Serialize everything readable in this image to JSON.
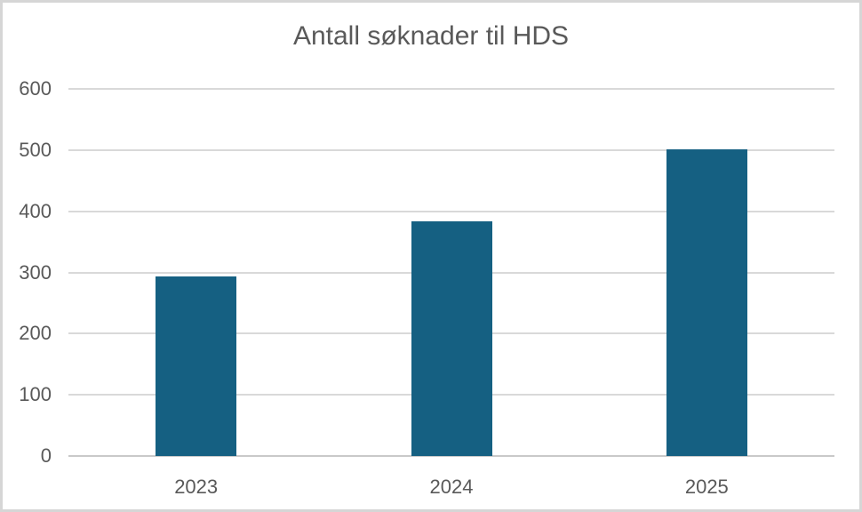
{
  "chart_data": {
    "type": "bar",
    "title": "Antall søknader til HDS",
    "categories": [
      "2023",
      "2024",
      "2025"
    ],
    "values": [
      293,
      383,
      501
    ],
    "xlabel": "",
    "ylabel": "",
    "ylim": [
      0,
      600
    ],
    "yticks": [
      0,
      100,
      200,
      300,
      400,
      500,
      600
    ],
    "grid": true,
    "legend": false
  },
  "colors": {
    "bar_fill": "#156082",
    "text": "#595959",
    "gridline": "#d9d9d9",
    "axis_line": "#c9c9c9",
    "background": "#ffffff",
    "border": "#d6d6d6"
  }
}
